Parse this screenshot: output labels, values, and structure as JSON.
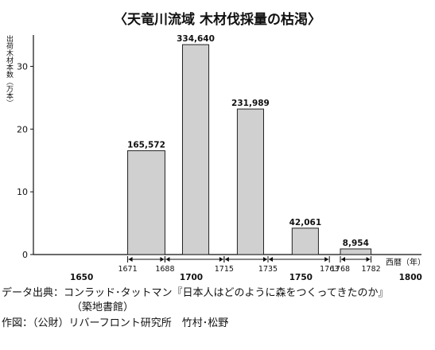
{
  "chart_data": {
    "type": "bar",
    "title": "〈天竜川流域 木材伐採量の枯渇〉",
    "ylabel": "出荷木材本数（万本）",
    "xlabel": "西暦（年）",
    "ylim": [
      0,
      35
    ],
    "yticks": [
      0,
      10,
      20,
      30
    ],
    "xlim": [
      1628,
      1805
    ],
    "xticks": [
      1650,
      1700,
      1750,
      1800
    ],
    "bars": [
      {
        "start": 1671,
        "end": 1688,
        "value": 16.5572,
        "label": "165,572"
      },
      {
        "start": 1696,
        "end": 1708,
        "value": 33.464,
        "label": "334,640"
      },
      {
        "start": 1721,
        "end": 1733,
        "value": 23.1989,
        "label": "231,989"
      },
      {
        "start": 1746,
        "end": 1758,
        "value": 4.2061,
        "label": "42,061"
      },
      {
        "start": 1768,
        "end": 1782,
        "value": 0.8954,
        "label": "8,954"
      }
    ],
    "periods": [
      {
        "start": 1671,
        "end": 1688,
        "start_label": "1671",
        "end_label": "1688"
      },
      {
        "start": 1688,
        "end": 1715,
        "start_label": "",
        "end_label": "1715"
      },
      {
        "start": 1715,
        "end": 1735,
        "start_label": "",
        "end_label": "1735"
      },
      {
        "start": 1735,
        "end": 1763,
        "start_label": "",
        "end_label": "1763"
      },
      {
        "start": 1768,
        "end": 1782,
        "start_label": "1768",
        "end_label": "1782"
      }
    ],
    "colors": {
      "bar_fill": "#d0d0d0",
      "bar_stroke": "#222222",
      "axis": "#111111"
    }
  },
  "source": {
    "line1": "データ出典：コンラッド･タットマン『日本人はどのように森をつくってきたのか』",
    "line2": "（築地書館）",
    "line3": "作図：（公財）リバーフロント研究所　竹村･松野"
  }
}
